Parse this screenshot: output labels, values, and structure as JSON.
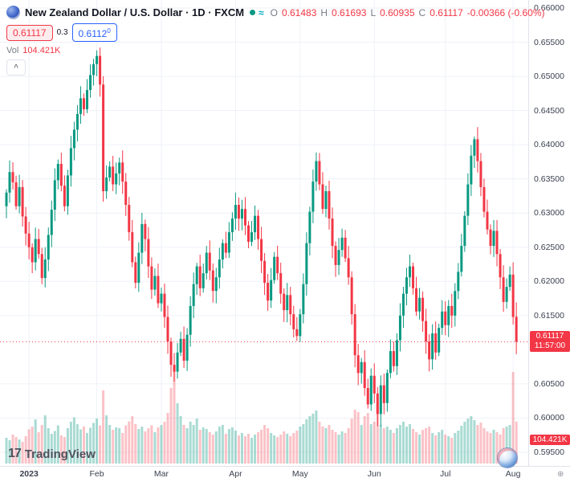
{
  "legend": {
    "title": "New Zealand Dollar / U.S. Dollar · 1D · FXCM",
    "status_approx_icon": "≈",
    "ohlc": {
      "o_label": "O",
      "o_value": "0.61483",
      "h_label": "H",
      "h_value": "0.61693",
      "l_label": "L",
      "l_value": "0.60935",
      "c_label": "C",
      "c_value": "0.61117",
      "change": "-0.00366 (-0.60%)"
    },
    "sell_price": "0.61117",
    "spread": "0.3",
    "buy_price_main": "0.6112",
    "buy_price_sup": "0",
    "vol_label": "Vol",
    "vol_value": "104.421K",
    "collapse_icon": "^"
  },
  "price_scale": {
    "last_price": "0.61117",
    "countdown": "11:57:00",
    "ticks": [
      {
        "label": "0.66000",
        "value": 0.66
      },
      {
        "label": "0.65500",
        "value": 0.655
      },
      {
        "label": "0.65000",
        "value": 0.65
      },
      {
        "label": "0.64500",
        "value": 0.645
      },
      {
        "label": "0.64000",
        "value": 0.64
      },
      {
        "label": "0.63500",
        "value": 0.635
      },
      {
        "label": "0.63000",
        "value": 0.63
      },
      {
        "label": "0.62500",
        "value": 0.625
      },
      {
        "label": "0.62000",
        "value": 0.62
      },
      {
        "label": "0.61500",
        "value": 0.615
      },
      {
        "label": "0.60500",
        "value": 0.605
      },
      {
        "label": "0.60000",
        "value": 0.6
      },
      {
        "label": "0.59500",
        "value": 0.595
      }
    ],
    "volume_label": "104.421K"
  },
  "time_scale": {
    "labels": [
      {
        "text": "2023",
        "index": 7,
        "year": true
      },
      {
        "text": "Feb",
        "index": 28
      },
      {
        "text": "Mar",
        "index": 48
      },
      {
        "text": "Apr",
        "index": 71
      },
      {
        "text": "May",
        "index": 91
      },
      {
        "text": "Jun",
        "index": 114
      },
      {
        "text": "Jul",
        "index": 136
      },
      {
        "text": "Aug",
        "index": 157
      }
    ],
    "corner_icon": "⊕"
  },
  "footer": {
    "logo_mark": "17",
    "logo_text": "TradingView"
  },
  "chart_data": {
    "type": "candlestick",
    "symbol": "NZDUSD",
    "timeframe": "1D",
    "exchange": "FXCM",
    "ylim": [
      0.595,
      0.66
    ],
    "last_price": 0.61117,
    "first_open": 0.631,
    "colors": {
      "up": "#089981",
      "down": "#F23645",
      "vol_up": "rgba(8,153,129,0.35)",
      "vol_down": "rgba(242,54,69,0.30)",
      "last_price_line": "#F23645",
      "grid": "#eef1f7"
    },
    "closes": [
      0.633,
      0.636,
      0.6345,
      0.631,
      0.6338,
      0.6295,
      0.627,
      0.625,
      0.6228,
      0.6262,
      0.624,
      0.6205,
      0.6232,
      0.6268,
      0.6305,
      0.6348,
      0.6372,
      0.634,
      0.631,
      0.6355,
      0.6395,
      0.6422,
      0.6445,
      0.6468,
      0.6452,
      0.648,
      0.6502,
      0.6518,
      0.653,
      0.6488,
      0.6332,
      0.6352,
      0.6368,
      0.6342,
      0.6358,
      0.6374,
      0.6346,
      0.6312,
      0.6272,
      0.6228,
      0.6198,
      0.6242,
      0.6284,
      0.6262,
      0.6222,
      0.6188,
      0.6208,
      0.6168,
      0.6182,
      0.6148,
      0.6112,
      0.6078,
      0.6068,
      0.6096,
      0.6116,
      0.6084,
      0.6122,
      0.6164,
      0.6196,
      0.6222,
      0.619,
      0.6212,
      0.6242,
      0.6216,
      0.6186,
      0.6206,
      0.6232,
      0.6256,
      0.6242,
      0.6272,
      0.6292,
      0.6312,
      0.6292,
      0.6306,
      0.6282,
      0.6258,
      0.6272,
      0.6296,
      0.6262,
      0.623,
      0.6198,
      0.6172,
      0.6202,
      0.6236,
      0.6212,
      0.6182,
      0.6158,
      0.618,
      0.6152,
      0.613,
      0.612,
      0.6152,
      0.6196,
      0.6256,
      0.6302,
      0.6346,
      0.6376,
      0.6342,
      0.6306,
      0.6332,
      0.6292,
      0.6252,
      0.6224,
      0.6246,
      0.6264,
      0.6234,
      0.6206,
      0.6152,
      0.6092,
      0.6066,
      0.6082,
      0.6044,
      0.602,
      0.6062,
      0.6036,
      0.6006,
      0.6048,
      0.6022,
      0.6066,
      0.6098,
      0.6076,
      0.6114,
      0.615,
      0.6182,
      0.6206,
      0.6222,
      0.619,
      0.6156,
      0.6176,
      0.6142,
      0.6112,
      0.6086,
      0.6124,
      0.6096,
      0.6132,
      0.6156,
      0.6136,
      0.6164,
      0.615,
      0.6186,
      0.6214,
      0.6252,
      0.6296,
      0.6342,
      0.6384,
      0.6408,
      0.6376,
      0.6338,
      0.6302,
      0.6276,
      0.6252,
      0.6274,
      0.624,
      0.6206,
      0.617,
      0.6192,
      0.621,
      0.6148,
      0.61117
    ],
    "volumes_k": [
      64,
      58,
      72,
      66,
      60,
      54,
      68,
      85,
      92,
      110,
      78,
      96,
      120,
      88,
      74,
      81,
      95,
      70,
      66,
      88,
      104,
      115,
      98,
      85,
      92,
      76,
      89,
      101,
      112,
      95,
      182,
      120,
      96,
      84,
      90,
      88,
      76,
      95,
      105,
      118,
      98,
      86,
      92,
      80,
      88,
      95,
      78,
      90,
      96,
      104,
      126,
      188,
      246,
      150,
      118,
      96,
      88,
      104,
      96,
      112,
      84,
      90,
      86,
      78,
      72,
      80,
      92,
      96,
      74,
      86,
      90,
      82,
      70,
      76,
      68,
      74,
      64,
      72,
      78,
      84,
      96,
      88,
      76,
      70,
      66,
      72,
      80,
      74,
      68,
      76,
      82,
      92,
      98,
      110,
      118,
      124,
      132,
      104,
      92,
      88,
      96,
      84,
      78,
      72,
      80,
      76,
      88,
      112,
      134,
      128,
      96,
      118,
      126,
      98,
      104,
      152,
      96,
      88,
      92,
      84,
      76,
      88,
      96,
      104,
      92,
      98,
      86,
      78,
      72,
      84,
      88,
      92,
      76,
      70,
      78,
      84,
      72,
      68,
      64,
      76,
      82,
      94,
      104,
      112,
      118,
      108,
      96,
      102,
      88,
      80,
      76,
      84,
      78,
      72,
      88,
      92,
      96,
      228,
      104.421
    ],
    "overrides": {
      "28": {
        "h": 0.6538
      },
      "115": {
        "l": 0.5988
      },
      "145": {
        "h": 0.6412
      },
      "158": {
        "o": 0.61483,
        "h": 0.61693,
        "l": 0.60935,
        "c": 0.61117
      }
    }
  }
}
